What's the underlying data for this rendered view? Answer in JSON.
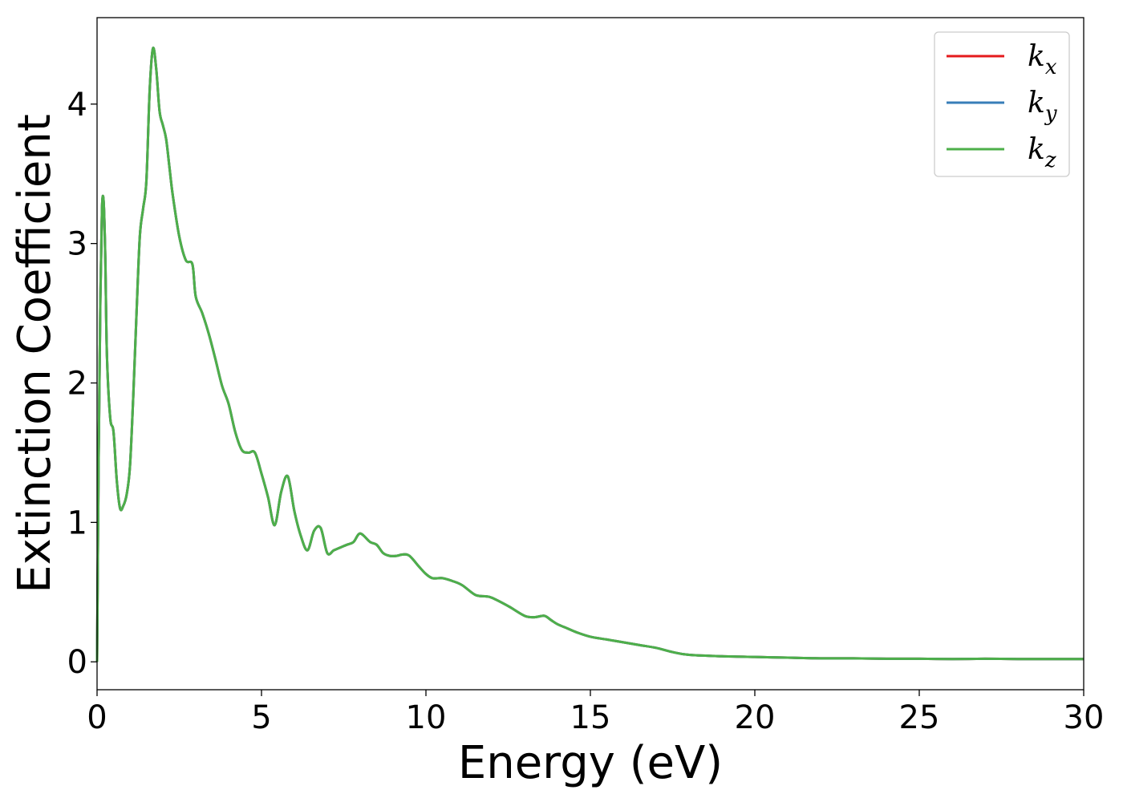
{
  "chart_data": {
    "type": "line",
    "title": "",
    "xlabel": "Energy (eV)",
    "ylabel": "Extinction Coefficient",
    "xlim": [
      0,
      30
    ],
    "ylim": [
      -0.2,
      4.62
    ],
    "xticks": [
      0,
      5,
      10,
      15,
      20,
      25,
      30
    ],
    "yticks": [
      0,
      1,
      2,
      3,
      4
    ],
    "grid": false,
    "legend_position": "top-right",
    "legend": [
      {
        "base": "k",
        "sub": "x",
        "color": "#e41a1c"
      },
      {
        "base": "k",
        "sub": "y",
        "color": "#377eb8"
      },
      {
        "base": "k",
        "sub": "z",
        "color": "#4daf4a"
      }
    ],
    "series": [
      {
        "name": "k_x",
        "color": "#e41a1c"
      },
      {
        "name": "k_y",
        "color": "#377eb8"
      },
      {
        "name": "k_z",
        "color": "#4daf4a"
      }
    ],
    "x": [
      0,
      0.05,
      0.1,
      0.15,
      0.2,
      0.25,
      0.3,
      0.4,
      0.5,
      0.6,
      0.7,
      0.8,
      0.9,
      1.0,
      1.1,
      1.2,
      1.3,
      1.4,
      1.5,
      1.6,
      1.7,
      1.8,
      1.9,
      2.0,
      2.1,
      2.2,
      2.3,
      2.5,
      2.7,
      2.9,
      3.0,
      3.2,
      3.4,
      3.6,
      3.8,
      4.0,
      4.2,
      4.4,
      4.6,
      4.8,
      5.0,
      5.2,
      5.4,
      5.6,
      5.8,
      6.0,
      6.2,
      6.4,
      6.6,
      6.8,
      7.0,
      7.2,
      7.4,
      7.6,
      7.8,
      8.0,
      8.3,
      8.5,
      8.7,
      8.9,
      9.1,
      9.3,
      9.5,
      9.8,
      10.0,
      10.2,
      10.5,
      10.8,
      11.1,
      11.5,
      11.8,
      12.0,
      12.5,
      13.0,
      13.3,
      13.6,
      13.8,
      14.0,
      14.3,
      14.6,
      15.0,
      15.5,
      16.0,
      16.5,
      17.0,
      17.5,
      18.0,
      19.0,
      20.0,
      21.0,
      22.0,
      23.0,
      24.0,
      25.0,
      26.0,
      27.0,
      28.0,
      29.0,
      30.0
    ],
    "y": [
      0,
      1.5,
      2.6,
      3.25,
      3.3,
      2.9,
      2.2,
      1.75,
      1.65,
      1.3,
      1.1,
      1.12,
      1.2,
      1.4,
      1.9,
      2.5,
      3.05,
      3.25,
      3.45,
      4.1,
      4.4,
      4.25,
      3.95,
      3.85,
      3.75,
      3.55,
      3.35,
      3.05,
      2.88,
      2.85,
      2.62,
      2.5,
      2.35,
      2.17,
      1.98,
      1.85,
      1.65,
      1.52,
      1.5,
      1.5,
      1.35,
      1.18,
      0.98,
      1.22,
      1.33,
      1.08,
      0.9,
      0.8,
      0.94,
      0.96,
      0.78,
      0.8,
      0.82,
      0.84,
      0.86,
      0.92,
      0.86,
      0.84,
      0.78,
      0.76,
      0.76,
      0.77,
      0.76,
      0.68,
      0.63,
      0.6,
      0.6,
      0.58,
      0.55,
      0.48,
      0.47,
      0.46,
      0.4,
      0.33,
      0.32,
      0.33,
      0.3,
      0.27,
      0.24,
      0.21,
      0.18,
      0.16,
      0.14,
      0.12,
      0.1,
      0.07,
      0.05,
      0.04,
      0.035,
      0.03,
      0.025,
      0.025,
      0.022,
      0.022,
      0.02,
      0.022,
      0.02,
      0.02,
      0.02
    ]
  }
}
